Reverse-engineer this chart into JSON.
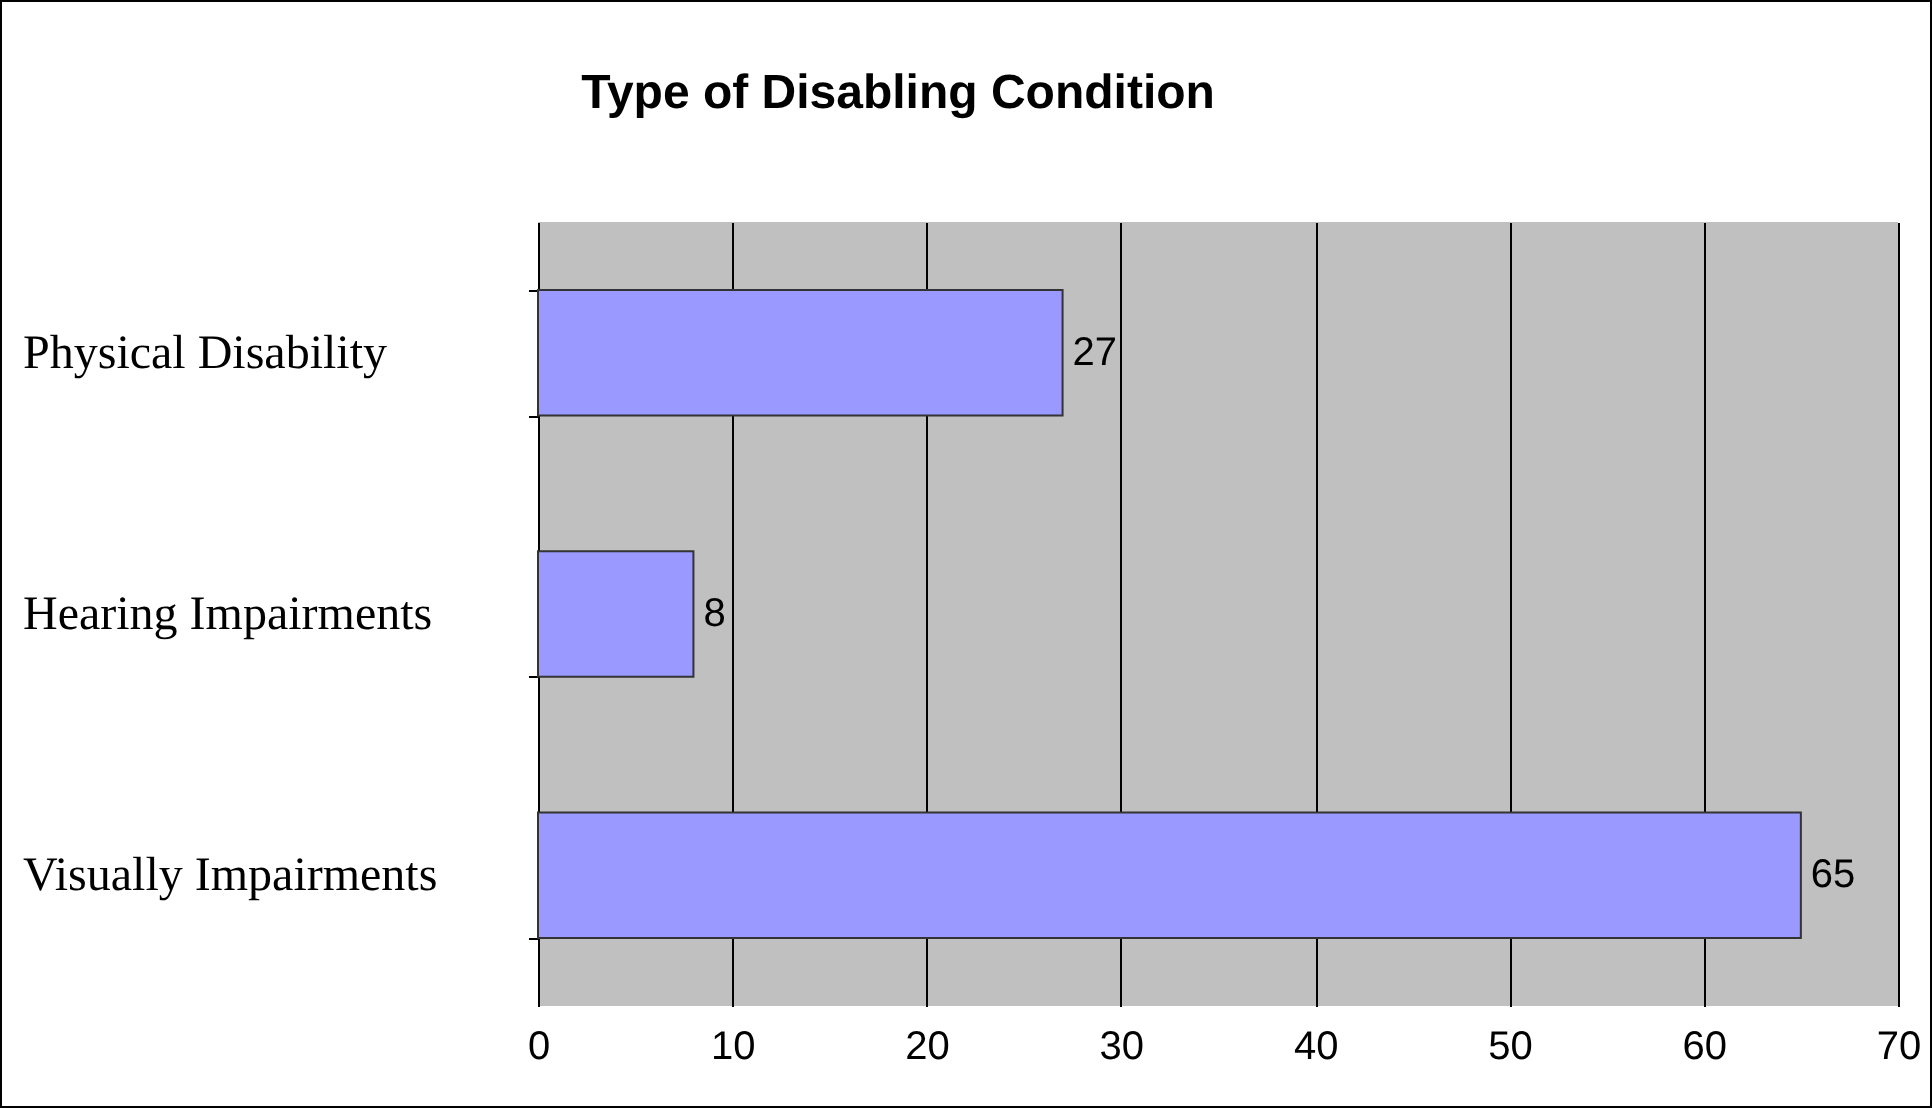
{
  "chart_data": {
    "type": "bar",
    "orientation": "horizontal",
    "title": "Type of Disabling Condition",
    "categories": [
      "Physical Disability",
      "Hearing Impairments",
      "Visually Impairments"
    ],
    "values": [
      27,
      8,
      65
    ],
    "color": "#9999ff",
    "xlim": [
      0,
      70
    ],
    "xticks": [
      0,
      10,
      20,
      30,
      40,
      50,
      60,
      70
    ],
    "grid": "x",
    "data_labels": true
  }
}
